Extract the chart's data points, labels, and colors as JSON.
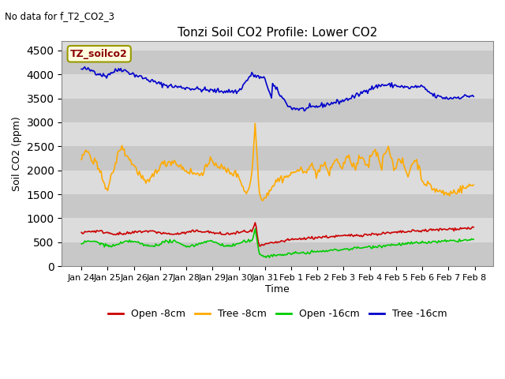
{
  "title": "Tonzi Soil CO2 Profile: Lower CO2",
  "suptitle": "No data for f_T2_CO2_3",
  "ylabel": "Soil CO2 (ppm)",
  "xlabel": "Time",
  "legend_label": "TZ_soilco2",
  "ylim": [
    0,
    4700
  ],
  "yticks": [
    0,
    500,
    1000,
    1500,
    2000,
    2500,
    3000,
    3500,
    4000,
    4500
  ],
  "series_colors": {
    "open8": "#cc0000",
    "tree8": "#ffaa00",
    "open16": "#00cc00",
    "tree16": "#0000cc"
  },
  "legend_entries": [
    "Open -8cm",
    "Tree -8cm",
    "Open -16cm",
    "Tree -16cm"
  ],
  "plot_bg_color": "#dcdcdc",
  "stripe_color": "#c8c8c8",
  "n_points": 360,
  "figwidth": 6.4,
  "figheight": 4.8,
  "dpi": 100
}
